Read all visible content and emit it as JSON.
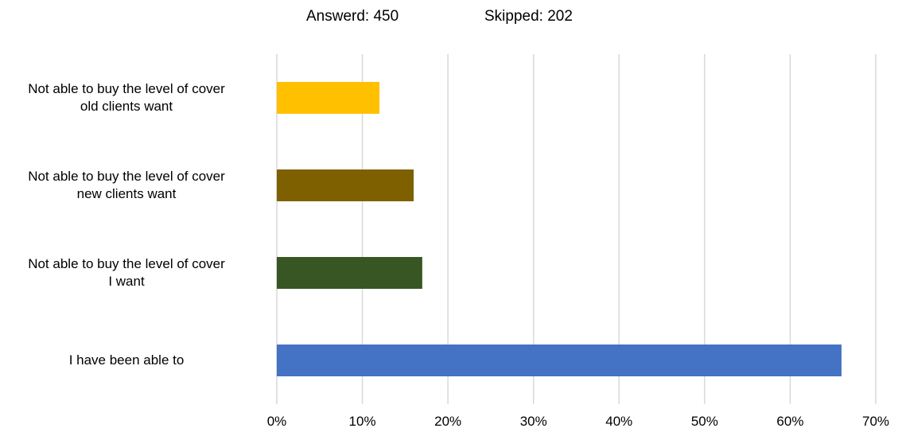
{
  "header": {
    "answered": "Answerd: 450",
    "skipped": "Skipped: 202"
  },
  "chart_data": {
    "type": "bar",
    "orientation": "horizontal",
    "categories": [
      "Not able to buy the  level of cover\nold clients want",
      "Not able to buy the level of cover\nnew clients want",
      "Not able to buy the level of cover\nI want",
      "I have been able to"
    ],
    "values": [
      12,
      16,
      17,
      66
    ],
    "colors": [
      "#FFC000",
      "#7F6000",
      "#375623",
      "#4472C4"
    ],
    "xlim": [
      0,
      70
    ],
    "xticks": [
      "0%",
      "10%",
      "20%",
      "30%",
      "40%",
      "50%",
      "60%",
      "70%"
    ],
    "grid": true,
    "legend": "none"
  }
}
